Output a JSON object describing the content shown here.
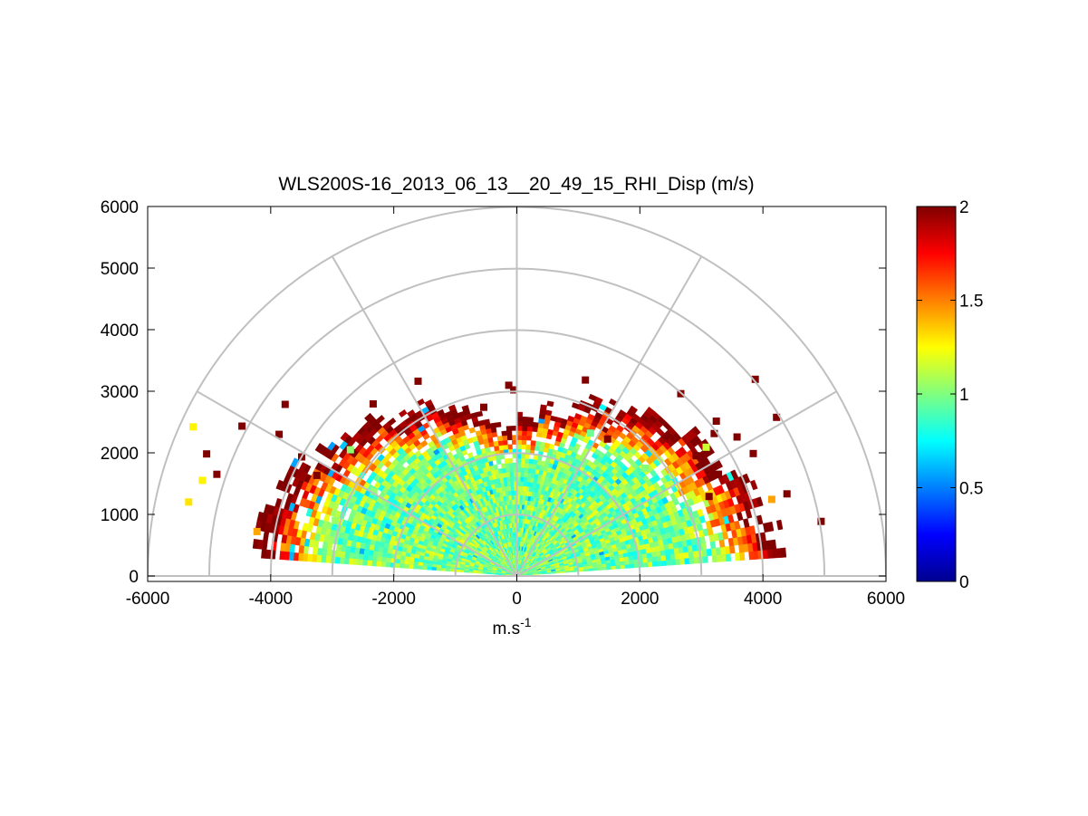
{
  "chart_data": {
    "type": "heatmap",
    "subtype": "polar-rhi",
    "title": "WLS200S-16_2013_06_13__20_49_15_RHI_Disp (m/s)",
    "xlabel_base": "m.s",
    "xlabel_exp": "-1",
    "ylabel": "",
    "xlim": [
      -6000,
      6000
    ],
    "ylim": [
      0,
      6000
    ],
    "x_ticks": [
      -6000,
      -4000,
      -2000,
      0,
      2000,
      4000,
      6000
    ],
    "x_tick_labels": [
      "-6000",
      "-4000",
      "-2000",
      "0",
      "2000",
      "4000",
      "6000"
    ],
    "y_ticks": [
      0,
      1000,
      2000,
      3000,
      4000,
      5000,
      6000
    ],
    "y_tick_labels": [
      "0",
      "1000",
      "2000",
      "3000",
      "4000",
      "5000",
      "6000"
    ],
    "polar_grid": {
      "range_rings": [
        1000,
        2000,
        3000,
        4000,
        5000,
        6000
      ],
      "spoke_angles_deg": [
        0,
        30,
        60,
        90,
        120,
        150,
        180
      ]
    },
    "grid": true,
    "colormap": "jet",
    "colorbar": {
      "min": 0,
      "max": 2,
      "ticks": [
        0,
        0.5,
        1,
        1.5,
        2
      ],
      "tick_labels": [
        "0",
        "0.5",
        "1",
        "1.5",
        "2"
      ],
      "placement": "right"
    },
    "field_summary": {
      "core_range_m": [
        0,
        2400
      ],
      "core_value_approx": 1.0,
      "edge_value_approx": 2.0,
      "scan_elevation_deg": [
        5,
        175
      ]
    },
    "colors": {
      "grid": "#c0c0c0",
      "axes": "#000000",
      "background": "#ffffff"
    }
  }
}
